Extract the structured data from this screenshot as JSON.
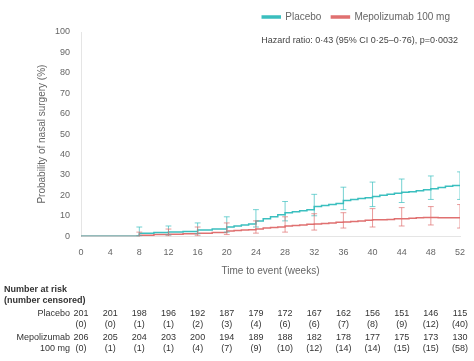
{
  "chart_data": {
    "type": "step",
    "x_label": "Time to event (weeks)",
    "y_label": "Probability of nasal surgery (%)",
    "xlim": [
      0,
      52
    ],
    "ylim": [
      0,
      100
    ],
    "xticks": [
      0,
      4,
      8,
      12,
      16,
      20,
      24,
      28,
      32,
      36,
      40,
      44,
      48,
      52
    ],
    "yticks": [
      0,
      10,
      20,
      30,
      40,
      50,
      60,
      70,
      80,
      90,
      100
    ],
    "grid": false,
    "legend": "upper right",
    "annotation": "Hazard ratio: 0·43 (95% CI 0·25–0·76), p=0·0032",
    "series": [
      {
        "name": "Placebo",
        "color": "#3BBFBF",
        "x": [
          0,
          4,
          6,
          8,
          9,
          10,
          11,
          12,
          13,
          14,
          15,
          16,
          17,
          18,
          19,
          20,
          21,
          22,
          23,
          24,
          25,
          26,
          27,
          28,
          29,
          30,
          31,
          32,
          33,
          34,
          35,
          36,
          37,
          38,
          39,
          40,
          41,
          42,
          43,
          44,
          45,
          46,
          47,
          48,
          49,
          50,
          51,
          52
        ],
        "values": [
          0,
          0,
          0,
          1.5,
          1.5,
          1.8,
          1.8,
          2.0,
          2.0,
          2.3,
          2.3,
          3.0,
          3.0,
          3.5,
          3.5,
          4.5,
          5.0,
          5.5,
          6.0,
          7.5,
          8.5,
          9.5,
          10.5,
          11.5,
          12.0,
          12.5,
          13.0,
          14.5,
          15.0,
          15.5,
          16.0,
          17.5,
          18.0,
          18.5,
          18.8,
          19.5,
          20.0,
          20.5,
          21.0,
          21.5,
          21.8,
          22.2,
          22.8,
          23.2,
          23.8,
          24.5,
          24.8,
          24.5
        ],
        "error_bars": {
          "x": [
            8,
            12,
            16,
            20,
            24,
            28,
            32,
            36,
            40,
            44,
            48,
            52
          ],
          "low": [
            0.3,
            0.6,
            1.2,
            2.0,
            4.5,
            7.5,
            10.0,
            13.0,
            14.5,
            16.5,
            18.0,
            18.0
          ],
          "high": [
            4.5,
            5.0,
            6.5,
            9.5,
            13.0,
            17.0,
            20.5,
            24.0,
            26.5,
            28.0,
            29.5,
            31.5
          ]
        }
      },
      {
        "name": "Mepolizumab 100 mg",
        "color": "#E07070",
        "x": [
          0,
          4,
          8,
          9,
          10,
          12,
          13,
          14,
          16,
          17,
          18,
          20,
          21,
          22,
          23,
          24,
          25,
          26,
          27,
          28,
          29,
          30,
          31,
          32,
          33,
          34,
          35,
          36,
          37,
          38,
          39,
          40,
          41,
          42,
          43,
          44,
          45,
          46,
          47,
          48,
          49,
          50,
          51,
          52
        ],
        "values": [
          0,
          0,
          0.5,
          0.5,
          0.8,
          1.0,
          1.0,
          1.2,
          1.5,
          1.5,
          1.8,
          2.5,
          2.8,
          3.0,
          3.2,
          3.5,
          4.0,
          4.2,
          4.5,
          5.0,
          5.2,
          5.5,
          5.8,
          6.0,
          6.2,
          6.5,
          6.8,
          7.0,
          7.2,
          7.5,
          7.8,
          8.0,
          8.0,
          8.2,
          8.5,
          8.5,
          8.8,
          9.0,
          9.2,
          9.2,
          9.0,
          9.0,
          9.0,
          9.0
        ],
        "error_bars": {
          "x": [
            8,
            12,
            16,
            20,
            24,
            28,
            32,
            36,
            40,
            44,
            48,
            52
          ],
          "low": [
            0,
            0.1,
            0.2,
            0.8,
            1.5,
            2.0,
            3.0,
            4.0,
            4.5,
            5.0,
            5.5,
            4.0
          ],
          "high": [
            2.0,
            3.5,
            4.5,
            6.5,
            7.5,
            9.5,
            11.0,
            11.5,
            13.5,
            14.0,
            14.5,
            15.5
          ]
        }
      }
    ],
    "risk_table": {
      "title": "Number at risk",
      "subtitle": "(number censored)",
      "x": [
        0,
        4,
        8,
        12,
        16,
        20,
        24,
        28,
        32,
        36,
        40,
        44,
        48,
        52
      ],
      "rows": [
        {
          "label": [
            "Placebo"
          ],
          "at_risk": [
            201,
            201,
            198,
            196,
            192,
            187,
            179,
            172,
            167,
            162,
            156,
            151,
            146,
            115
          ],
          "censored": [
            0,
            0,
            1,
            1,
            2,
            3,
            4,
            6,
            6,
            7,
            8,
            9,
            12,
            40
          ],
          "censored_labels": [
            "(0)",
            "(0)",
            "(1)",
            "(1)",
            "(2)",
            "(3)",
            "(4)",
            "(6)",
            "(6)",
            "(7)",
            "(8)",
            "(9)",
            "(12)",
            "(40)"
          ]
        },
        {
          "label": [
            "Mepolizumab",
            "100 mg"
          ],
          "at_risk": [
            206,
            205,
            204,
            203,
            200,
            194,
            189,
            188,
            182,
            178,
            177,
            175,
            173,
            130
          ],
          "censored": [
            0,
            1,
            1,
            1,
            4,
            7,
            9,
            10,
            12,
            14,
            14,
            15,
            15,
            58
          ],
          "censored_labels": [
            "(0)",
            "(1)",
            "(1)",
            "(1)",
            "(4)",
            "(7)",
            "(9)",
            "(10)",
            "(12)",
            "(14)",
            "(14)",
            "(15)",
            "(15)",
            "(58)"
          ]
        }
      ]
    }
  }
}
